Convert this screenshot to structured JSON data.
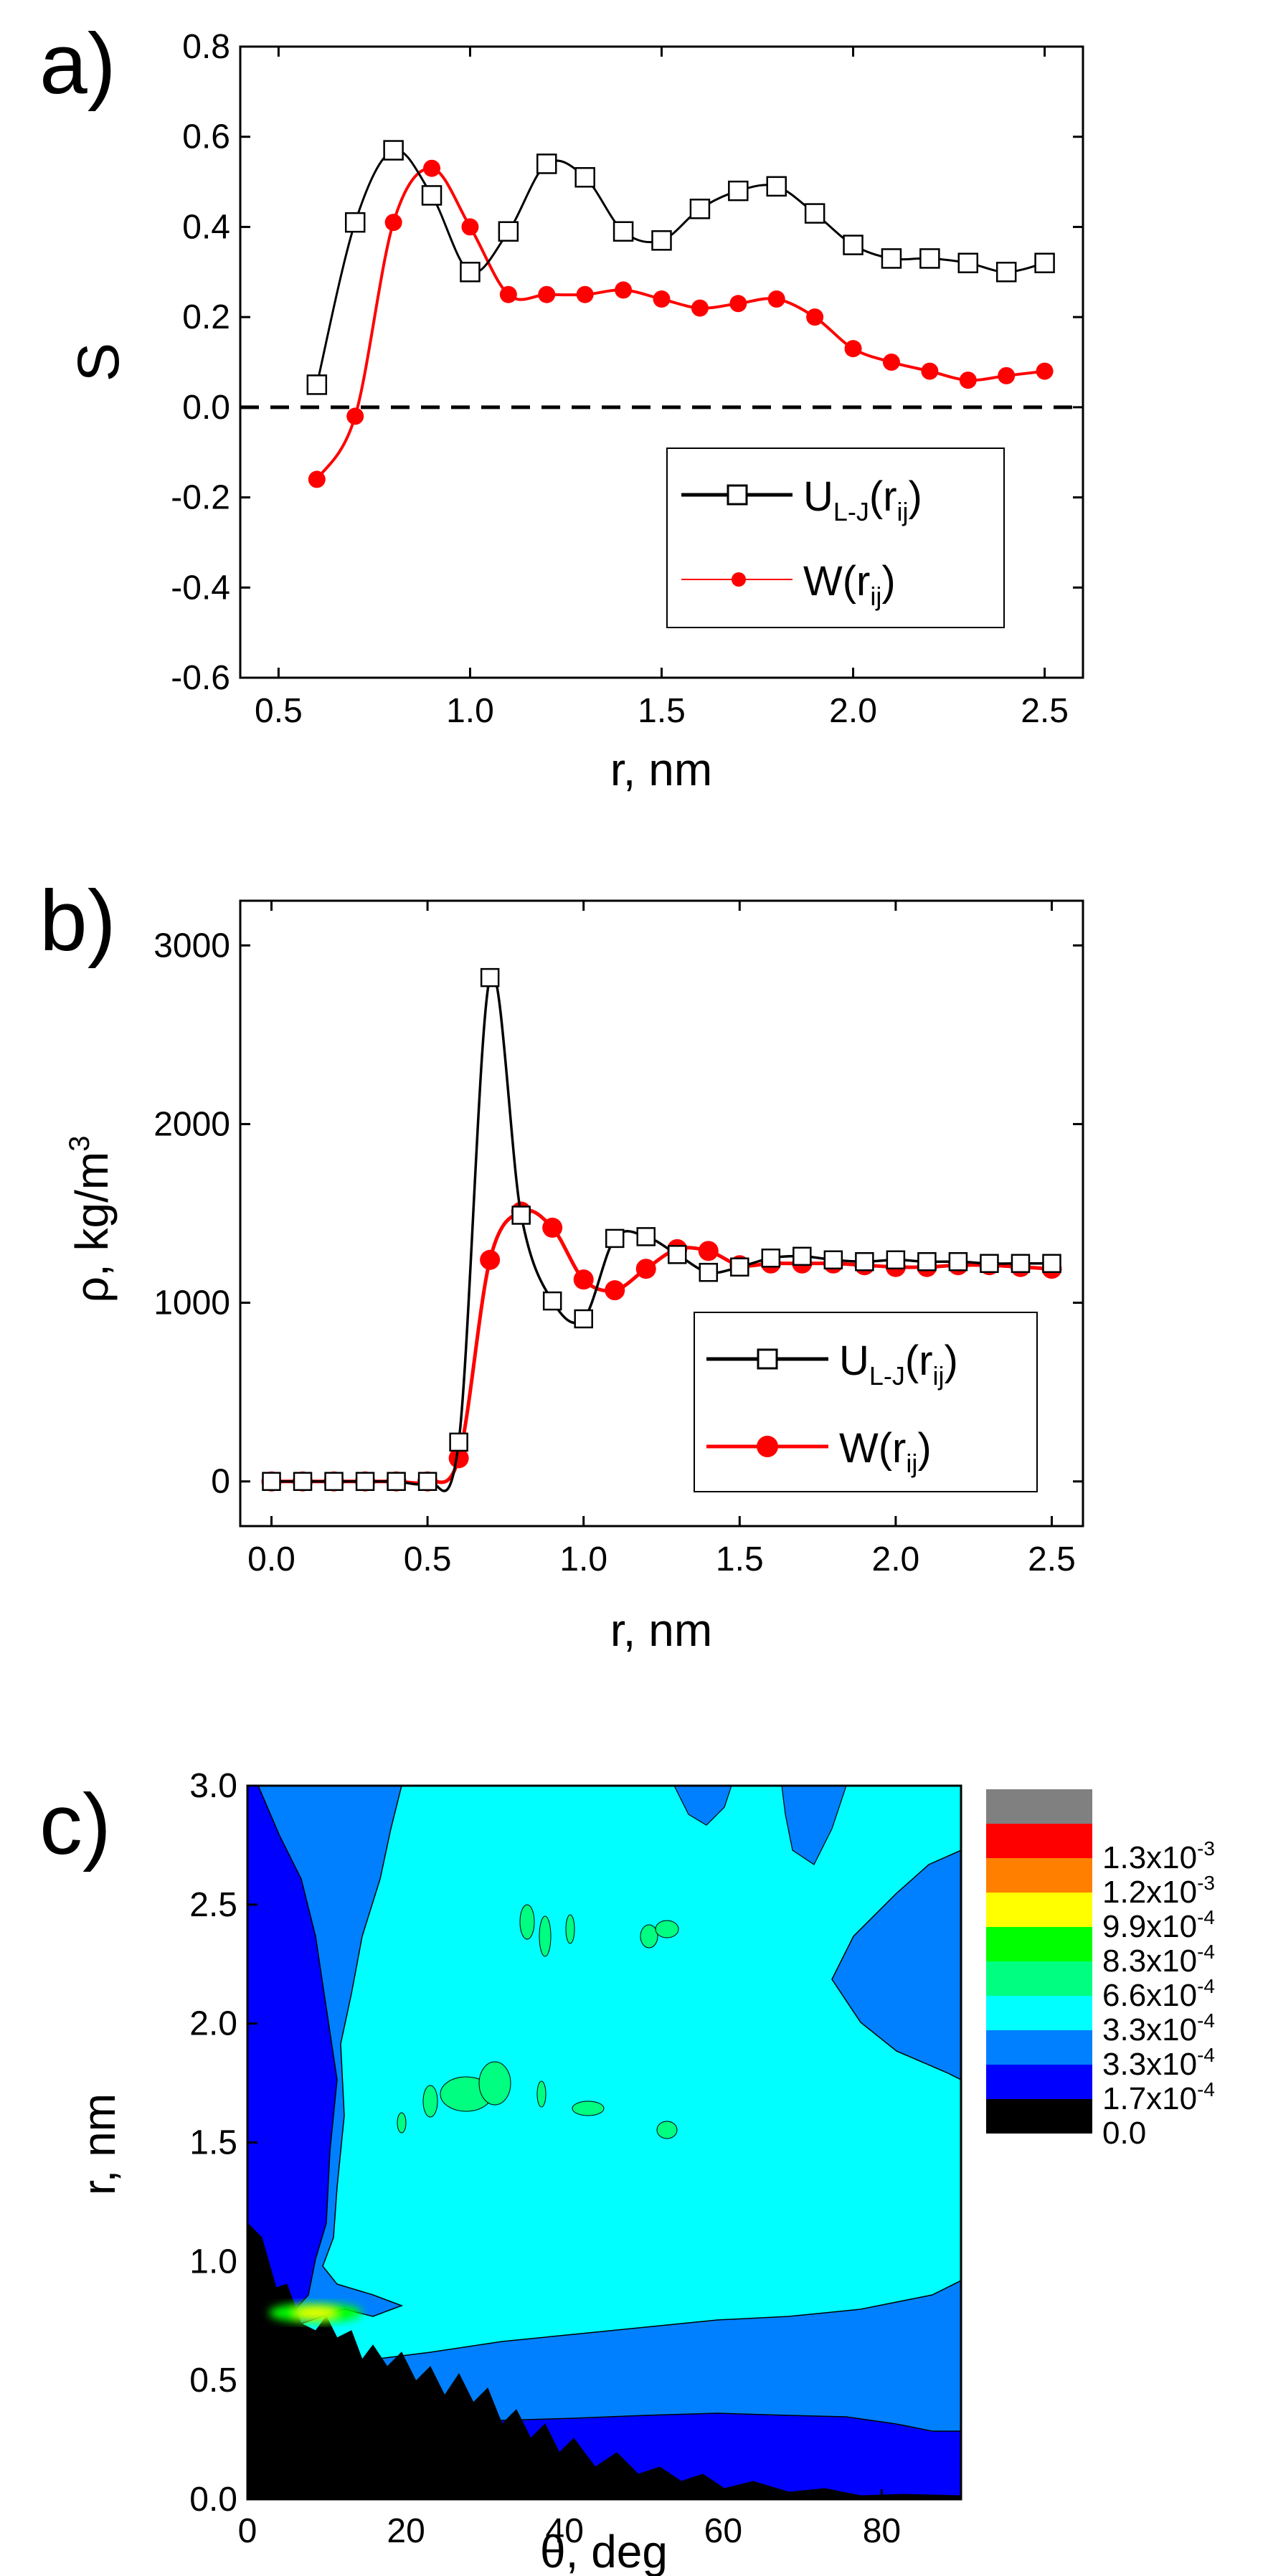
{
  "chart_data": [
    {
      "panel": "a)",
      "type": "line",
      "xlabel": "r, nm",
      "ylabel": "S",
      "xlim": [
        0.4,
        2.6
      ],
      "ylim": [
        -0.6,
        0.8
      ],
      "xticks": [
        "0.5",
        "1.0",
        "1.5",
        "2.0",
        "2.5"
      ],
      "yticks": [
        "-0.6",
        "-0.4",
        "-0.2",
        "0.0",
        "0.2",
        "0.4",
        "0.6",
        "0.8"
      ],
      "reference_line": {
        "y": 0.0,
        "style": "dashed",
        "color": "#000000"
      },
      "legend_position": "lower-right",
      "series": [
        {
          "name": "U",
          "name_sub": "L-J",
          "name_tail": "(r",
          "name_tail_sub": "ij",
          "name_end": ")",
          "color": "#000000",
          "marker": "open-square",
          "x": [
            0.6,
            0.7,
            0.8,
            0.9,
            1.0,
            1.1,
            1.2,
            1.3,
            1.4,
            1.5,
            1.6,
            1.7,
            1.8,
            1.9,
            2.0,
            2.1,
            2.2,
            2.3,
            2.4,
            2.5
          ],
          "y": [
            0.05,
            0.41,
            0.57,
            0.47,
            0.3,
            0.39,
            0.54,
            0.51,
            0.39,
            0.37,
            0.44,
            0.48,
            0.49,
            0.43,
            0.36,
            0.33,
            0.33,
            0.32,
            0.3,
            0.32
          ]
        },
        {
          "name": "W(r",
          "name_sub": "ij",
          "name_end": ")",
          "color": "#ff0000",
          "marker": "filled-circle",
          "x": [
            0.6,
            0.7,
            0.8,
            0.9,
            1.0,
            1.1,
            1.2,
            1.3,
            1.4,
            1.5,
            1.6,
            1.7,
            1.8,
            1.9,
            2.0,
            2.1,
            2.2,
            2.3,
            2.4,
            2.5
          ],
          "y": [
            -0.16,
            -0.02,
            0.41,
            0.53,
            0.4,
            0.25,
            0.25,
            0.25,
            0.26,
            0.24,
            0.22,
            0.23,
            0.24,
            0.2,
            0.13,
            0.1,
            0.08,
            0.06,
            0.07,
            0.08
          ]
        }
      ]
    },
    {
      "panel": "b)",
      "type": "line",
      "xlabel": "r, nm",
      "ylabel": "ρ, kg/m",
      "ylabel_sup": "3",
      "xlim": [
        -0.1,
        2.6
      ],
      "ylim": [
        -250,
        3250
      ],
      "xticks": [
        "0.0",
        "0.5",
        "1.0",
        "1.5",
        "2.0",
        "2.5"
      ],
      "yticks": [
        "0",
        "1000",
        "2000",
        "3000"
      ],
      "legend_position": "lower-right",
      "series": [
        {
          "name": "U",
          "name_sub": "L-J",
          "name_tail": "(r",
          "name_tail_sub": "ij",
          "name_end": ")",
          "color": "#000000",
          "marker": "open-square",
          "x": [
            0.0,
            0.1,
            0.2,
            0.3,
            0.4,
            0.5,
            0.6,
            0.7,
            0.8,
            0.9,
            1.0,
            1.1,
            1.2,
            1.3,
            1.4,
            1.5,
            1.6,
            1.7,
            1.8,
            1.9,
            2.0,
            2.1,
            2.2,
            2.3,
            2.4,
            2.5
          ],
          "y": [
            0,
            0,
            0,
            0,
            0,
            0,
            220,
            2820,
            1490,
            1010,
            910,
            1360,
            1370,
            1270,
            1170,
            1200,
            1250,
            1260,
            1240,
            1230,
            1240,
            1230,
            1230,
            1220,
            1220,
            1220
          ]
        },
        {
          "name": "W(r",
          "name_sub": "ij",
          "name_end": ")",
          "color": "#ff0000",
          "marker": "filled-circle",
          "x": [
            0.0,
            0.1,
            0.2,
            0.3,
            0.4,
            0.5,
            0.6,
            0.7,
            0.8,
            0.9,
            1.0,
            1.1,
            1.2,
            1.3,
            1.4,
            1.5,
            1.6,
            1.7,
            1.8,
            1.9,
            2.0,
            2.1,
            2.2,
            2.3,
            2.4,
            2.5
          ],
          "y": [
            0,
            0,
            0,
            0,
            0,
            0,
            130,
            1240,
            1510,
            1420,
            1130,
            1070,
            1190,
            1300,
            1290,
            1210,
            1220,
            1220,
            1220,
            1210,
            1200,
            1200,
            1210,
            1210,
            1200,
            1190
          ]
        }
      ]
    },
    {
      "panel": "c)",
      "type": "heatmap",
      "xlabel": "θ, deg",
      "ylabel": "r, nm",
      "xlim": [
        0,
        90
      ],
      "ylim": [
        0,
        3.0
      ],
      "xticks": [
        "0",
        "20",
        "40",
        "60",
        "80"
      ],
      "yticks": [
        "0.0",
        "0.5",
        "1.0",
        "1.5",
        "2.0",
        "2.5",
        "3.0"
      ],
      "colorbar": [
        {
          "label": "",
          "color": "#808080"
        },
        {
          "label": "1.3x10",
          "exp": "-3",
          "color": "#ff0000"
        },
        {
          "label": "1.2x10",
          "exp": "-3",
          "color": "#ff8000"
        },
        {
          "label": "9.9x10",
          "exp": "-4",
          "color": "#ffff00"
        },
        {
          "label": "8.3x10",
          "exp": "-4",
          "color": "#00ff00"
        },
        {
          "label": "6.6x10",
          "exp": "-4",
          "color": "#00ff80"
        },
        {
          "label": "3.3x10",
          "exp": "-4",
          "color": "#00ffff"
        },
        {
          "label": "3.3x10",
          "exp": "-4",
          "color": "#0080ff"
        },
        {
          "label": "1.7x10",
          "exp": "-4",
          "color": "#0000ff"
        },
        {
          "label": "0.0",
          "exp": "",
          "color": "#000000"
        }
      ]
    }
  ]
}
